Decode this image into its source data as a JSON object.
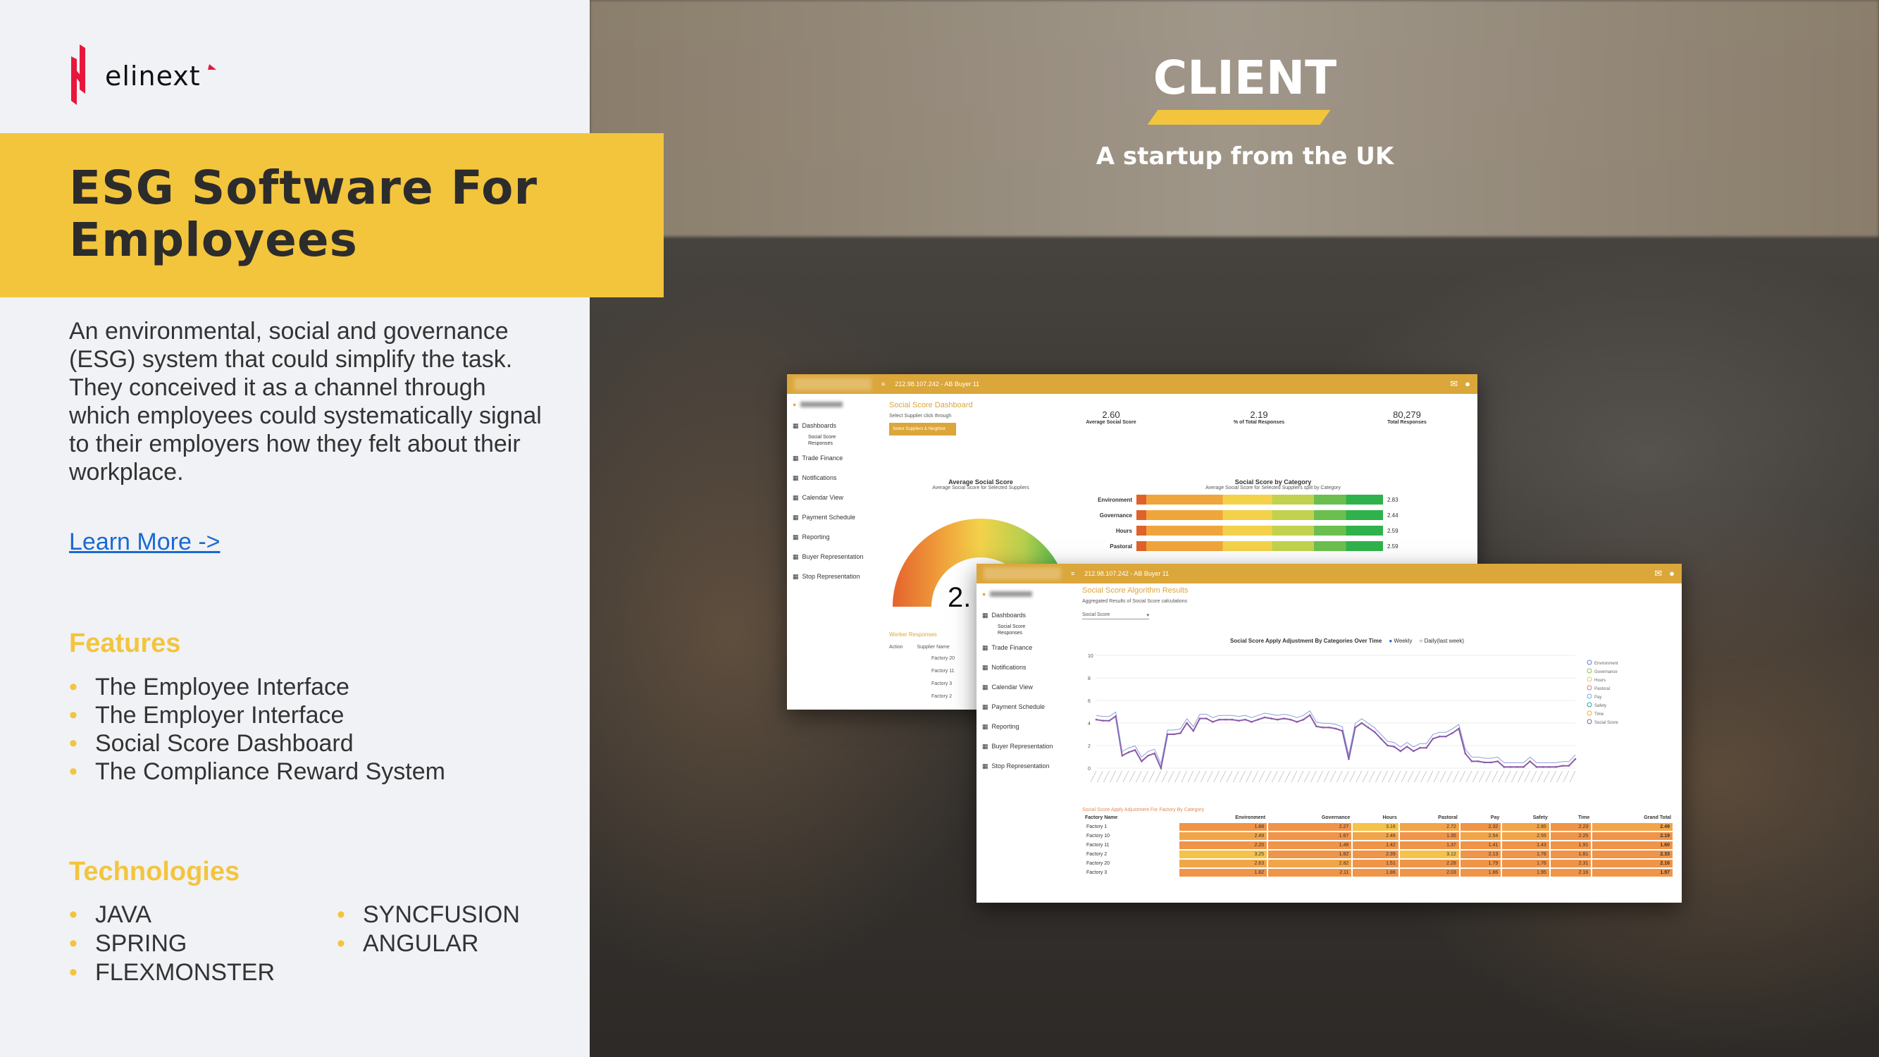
{
  "brand": {
    "logo_text": "elinext",
    "accent": "#f3c53d",
    "logo_red": "#e8163c"
  },
  "left": {
    "title_line1": "ESG Software For",
    "title_line2": "Employees",
    "description": "An environmental, social and governance (ESG) system that could simplify the task. They conceived it as a channel through which employees could systematically signal to their employers how they felt about their workplace.",
    "learn_more": "Learn More ->",
    "features_heading": "Features",
    "features": [
      "The Employee Interface",
      "The Employer Interface",
      "Social Score Dashboard",
      "The Compliance Reward System"
    ],
    "technologies_heading": "Technologies",
    "technologies_col1": [
      "JAVA",
      "SPRING",
      "FLEXMONSTER"
    ],
    "technologies_col2": [
      "SYNCFUSION",
      "ANGULAR"
    ]
  },
  "right": {
    "heading": "CLIENT",
    "subtitle": "A startup from the UK"
  },
  "shot1": {
    "topbar": "212.98.107.242 - AB Buyer 11",
    "sidebar": [
      "Dashboards",
      "Trade Finance",
      "Notifications",
      "Calendar View",
      "Payment Schedule",
      "Reporting",
      "Buyer Representation",
      "Stop Representation"
    ],
    "sub": [
      "Social Score",
      "Responses"
    ],
    "page_title": "Social Score Dashboard",
    "select_label": "Select Supplier click through",
    "select_button": "Select Suppliers & Neighbor",
    "kpis": [
      {
        "value": "2.60",
        "label": "Average Social Score"
      },
      {
        "value": "2.19",
        "label": "% of Total Responses"
      },
      {
        "value": "80,279",
        "label": "Total Responses"
      }
    ],
    "gauge_title": "Average Social Score",
    "gauge_sub": "Average Social Score for Selected Suppliers",
    "gauge_value": "2.",
    "cat_title": "Social Score by Category",
    "cat_sub": "Average Social Score for Selected Suppliers split by Category",
    "categories": [
      {
        "name": "Environment",
        "value": "2.83"
      },
      {
        "name": "Governance",
        "value": "2.44"
      },
      {
        "name": "Hours",
        "value": "2.59"
      },
      {
        "name": "Pastoral",
        "value": "2.59"
      }
    ],
    "worker_title": "Worker Responses",
    "worker_cols": [
      "Action",
      "Supplier Name"
    ],
    "workers": [
      "Factory 20",
      "Factory 11",
      "Factory 3",
      "Factory 2"
    ]
  },
  "shot2": {
    "topbar": "212.98.107.242 - AB Buyer 11",
    "page_title": "Social Score Algorithm Results",
    "page_sub": "Aggregated Results of Social Score calculations",
    "dropdown": "Social Score",
    "chart_title": "Social Score Apply Adjustment By Categories Over Time",
    "radio_weekly": "Weekly",
    "radio_daily": "Daily(last week)",
    "yticks": [
      "10",
      "8",
      "6",
      "4",
      "2",
      "0"
    ],
    "legend": [
      "Environment",
      "Governance",
      "Hours",
      "Pastoral",
      "Pay",
      "Safety",
      "Time",
      "Social Score"
    ],
    "series_values": [
      4.3,
      4.2,
      4.2,
      4.6,
      1.1,
      1.4,
      1.6,
      0.6,
      1.1,
      1.3,
      0,
      3.0,
      3.0,
      3.1,
      4.0,
      3.3,
      4.4,
      4.4,
      4.1,
      4.3,
      4.3,
      4.3,
      4.2,
      4.3,
      4.1,
      4.3,
      4.5,
      4.4,
      4.3,
      4.4,
      4.3,
      4.1,
      4.3,
      4.7,
      3.7,
      3.6,
      3.6,
      3.5,
      3.3,
      0.8,
      3.6,
      4.0,
      3.6,
      3.2,
      2.6,
      2.0,
      1.9,
      1.5,
      1.9,
      1.5,
      1.8,
      1.8,
      2.6,
      2.8,
      2.8,
      3.1,
      3.5,
      1.3,
      0.6,
      0.6,
      0.5,
      0.5,
      0.6,
      0.1,
      0.1,
      0.1,
      0.1,
      0.6,
      0.1,
      0.1,
      0.1,
      0.1,
      0.2,
      0.2,
      0.8
    ],
    "series_color": "#8a5aa8",
    "table_title": "Social Score Apply Adjustment For Factory By Category",
    "table_cols": [
      "Factory Name",
      "Environment",
      "Governance",
      "Hours",
      "Pastoral",
      "Pay",
      "Safety",
      "Time",
      "Grand Total"
    ],
    "table_rows": [
      [
        "Factory 1",
        "1.88",
        "2.27",
        "3.16",
        "2.72",
        "2.32",
        "2.85",
        "2.23",
        "2.49"
      ],
      [
        "Factory 10",
        "2.49",
        "1.67",
        "2.46",
        "1.35",
        "2.54",
        "2.55",
        "2.25",
        "2.19"
      ],
      [
        "Factory 11",
        "2.20",
        "1.48",
        "1.42",
        "1.37",
        "1.41",
        "1.43",
        "1.91",
        "1.60"
      ],
      [
        "Factory 2",
        "3.25",
        "1.82",
        "2.39",
        "3.12",
        "2.13",
        "1.76",
        "1.81",
        "2.33"
      ],
      [
        "Factory 20",
        "2.63",
        "2.82",
        "1.51",
        "2.28",
        "1.79",
        "1.76",
        "2.31",
        "2.16"
      ],
      [
        "Factory 3",
        "1.82",
        "2.11",
        "1.86",
        "2.03",
        "1.86",
        "1.95",
        "2.16",
        "1.97"
      ]
    ]
  }
}
